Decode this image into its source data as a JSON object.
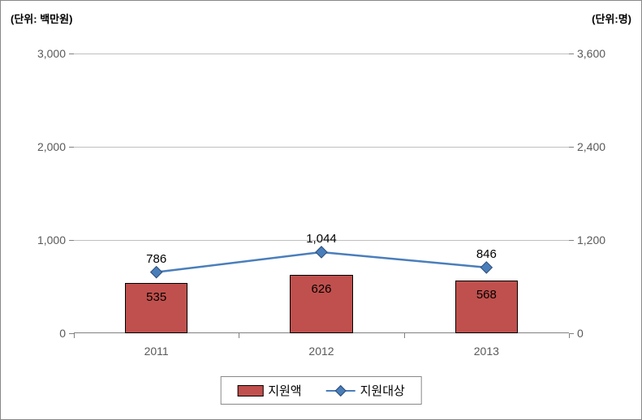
{
  "titles": {
    "left": "(단위: 백만원)",
    "right": "(단위:명)"
  },
  "chart": {
    "type": "bar+line",
    "background_color": "#ffffff",
    "border_color": "#888888",
    "grid_color": "#bfbfbf",
    "label_color": "#595959",
    "data_label_color": "#000000",
    "label_fontsize": 14,
    "data_label_fontsize": 15,
    "categories": [
      "2011",
      "2012",
      "2013"
    ],
    "left_axis": {
      "min": 0,
      "max": 3000,
      "ticks": [
        0,
        1000,
        2000,
        3000
      ],
      "tick_labels": [
        "0",
        "1,000",
        "2,000",
        "3,000"
      ]
    },
    "right_axis": {
      "min": 0,
      "max": 3600,
      "ticks": [
        0,
        1200,
        2400,
        3600
      ],
      "tick_labels": [
        "0",
        "1,200",
        "2,400",
        "3,600"
      ]
    },
    "bars": {
      "name": "지원액",
      "values": [
        535,
        626,
        568
      ],
      "labels": [
        "535",
        "626",
        "568"
      ],
      "color": "#c0504d",
      "border_color": "#000000",
      "width_fraction": 0.38
    },
    "line": {
      "name": "지원대상",
      "values": [
        786,
        1044,
        846
      ],
      "labels": [
        "786",
        "1,044",
        "846"
      ],
      "color": "#4a7ebb",
      "marker_fill": "#4a7ebb",
      "marker_border": "#2c4d75",
      "marker_size": 10,
      "line_width": 2.5
    }
  },
  "legend": {
    "bar_label": "지원액",
    "line_label": "지원대상"
  }
}
